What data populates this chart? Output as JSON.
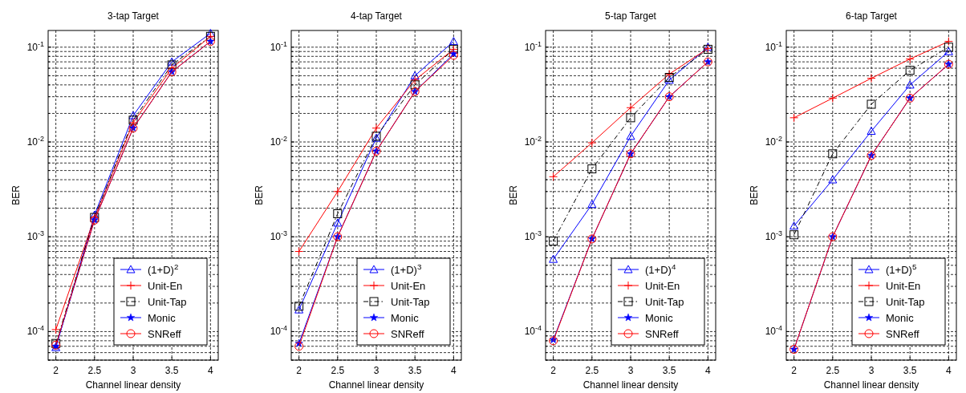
{
  "chart_data": [
    {
      "type": "line",
      "title": "3-tap Target",
      "xlabel": "Channel linear density",
      "ylabel": "BER",
      "log": "y",
      "grid": true,
      "legend": "bottom right",
      "x": [
        2,
        2.5,
        3,
        3.5,
        4
      ],
      "xlim": [
        1.9,
        4.1
      ],
      "xticks": [
        2,
        2.5,
        3,
        3.5,
        4
      ],
      "ylim": [
        5e-05,
        0.15
      ],
      "yticks": [
        {
          "value": 5e-05,
          "label": null
        },
        {
          "value": 6e-05,
          "label": null
        },
        {
          "value": 7e-05,
          "label": null
        },
        {
          "value": 8e-05,
          "label": null
        },
        {
          "value": 9e-05,
          "label": null
        },
        {
          "value": 0.0001,
          "label": "10$^{-4}$"
        },
        {
          "value": 0.0002,
          "label": null
        },
        {
          "value": 0.0003,
          "label": null
        },
        {
          "value": 0.0004,
          "label": null
        },
        {
          "value": 0.0005,
          "label": null
        },
        {
          "value": 0.0006,
          "label": null
        },
        {
          "value": 0.0007,
          "label": null
        },
        {
          "value": 0.0008,
          "label": null
        },
        {
          "value": 0.0009,
          "label": null
        },
        {
          "value": 0.001,
          "label": "10$^{-3}$"
        },
        {
          "value": 0.002,
          "label": null
        },
        {
          "value": 0.003,
          "label": null
        },
        {
          "value": 0.004,
          "label": null
        },
        {
          "value": 0.005,
          "label": null
        },
        {
          "value": 0.006,
          "label": null
        },
        {
          "value": 0.007,
          "label": null
        },
        {
          "value": 0.008,
          "label": null
        },
        {
          "value": 0.009,
          "label": null
        },
        {
          "value": 0.01,
          "label": "10$^{-2}$"
        },
        {
          "value": 0.02,
          "label": null
        },
        {
          "value": 0.03,
          "label": null
        },
        {
          "value": 0.04,
          "label": null
        },
        {
          "value": 0.05,
          "label": null
        },
        {
          "value": 0.06,
          "label": null
        },
        {
          "value": 0.07,
          "label": null
        },
        {
          "value": 0.08,
          "label": null
        },
        {
          "value": 0.09,
          "label": null
        },
        {
          "value": 0.1,
          "label": "10$^{-1}$"
        }
      ],
      "series": [
        {
          "name": "(1+D)$^{2}$",
          "color": "#0000ff",
          "marker": "triangle",
          "line_style": "solid",
          "values": [
            6.8e-05,
            0.0017,
            0.019,
            0.07,
            0.14
          ]
        },
        {
          "name": "Unit-En",
          "color": "#ff0000",
          "marker": "cross",
          "line_style": "solid",
          "values": [
            0.000105,
            0.0016,
            0.016,
            0.06,
            0.13
          ]
        },
        {
          "name": "Unit-Tap",
          "color": "#000000",
          "marker": "square",
          "line_style": "dashed",
          "values": [
            7.5e-05,
            0.0016,
            0.017,
            0.065,
            0.13
          ]
        },
        {
          "name": "Monic",
          "color": "#0000ff",
          "marker": "star",
          "line_style": "solid",
          "values": [
            7e-05,
            0.0015,
            0.014,
            0.055,
            0.115
          ]
        },
        {
          "name": "SNReff",
          "color": "#ff0000",
          "marker": "circle",
          "line_style": "solid",
          "values": [
            7.2e-05,
            0.0015,
            0.014,
            0.055,
            0.115
          ]
        }
      ]
    },
    {
      "type": "line",
      "title": "4-tap Target",
      "xlabel": "Channel linear density",
      "ylabel": "BER",
      "log": "y",
      "grid": true,
      "legend": "bottom right",
      "x": [
        2,
        2.5,
        3,
        3.5,
        4
      ],
      "xlim": [
        1.9,
        4.1
      ],
      "xticks": [
        2,
        2.5,
        3,
        3.5,
        4
      ],
      "ylim": [
        5e-05,
        0.15
      ],
      "yticks": [
        {
          "value": 5e-05,
          "label": null
        },
        {
          "value": 6e-05,
          "label": null
        },
        {
          "value": 7e-05,
          "label": null
        },
        {
          "value": 8e-05,
          "label": null
        },
        {
          "value": 9e-05,
          "label": null
        },
        {
          "value": 0.0001,
          "label": "10$^{-4}$"
        },
        {
          "value": 0.0002,
          "label": null
        },
        {
          "value": 0.0003,
          "label": null
        },
        {
          "value": 0.0004,
          "label": null
        },
        {
          "value": 0.0005,
          "label": null
        },
        {
          "value": 0.0006,
          "label": null
        },
        {
          "value": 0.0007,
          "label": null
        },
        {
          "value": 0.0008,
          "label": null
        },
        {
          "value": 0.0009,
          "label": null
        },
        {
          "value": 0.001,
          "label": "10$^{-3}$"
        },
        {
          "value": 0.002,
          "label": null
        },
        {
          "value": 0.003,
          "label": null
        },
        {
          "value": 0.004,
          "label": null
        },
        {
          "value": 0.005,
          "label": null
        },
        {
          "value": 0.006,
          "label": null
        },
        {
          "value": 0.007,
          "label": null
        },
        {
          "value": 0.008,
          "label": null
        },
        {
          "value": 0.009,
          "label": null
        },
        {
          "value": 0.01,
          "label": "10$^{-2}$"
        },
        {
          "value": 0.02,
          "label": null
        },
        {
          "value": 0.03,
          "label": null
        },
        {
          "value": 0.04,
          "label": null
        },
        {
          "value": 0.05,
          "label": null
        },
        {
          "value": 0.06,
          "label": null
        },
        {
          "value": 0.07,
          "label": null
        },
        {
          "value": 0.08,
          "label": null
        },
        {
          "value": 0.09,
          "label": null
        },
        {
          "value": 0.1,
          "label": "10$^{-1}$"
        }
      ],
      "series": [
        {
          "name": "(1+D)$^{3}$",
          "color": "#0000ff",
          "marker": "triangle",
          "line_style": "solid",
          "values": [
            0.00017,
            0.0014,
            0.011,
            0.05,
            0.115
          ]
        },
        {
          "name": "Unit-En",
          "color": "#ff0000",
          "marker": "cross",
          "line_style": "solid",
          "values": [
            0.0007,
            0.003,
            0.014,
            0.045,
            0.095
          ]
        },
        {
          "name": "Unit-Tap",
          "color": "#000000",
          "marker": "square",
          "line_style": "dashed",
          "values": [
            0.000185,
            0.00175,
            0.0115,
            0.04,
            0.095
          ]
        },
        {
          "name": "Monic",
          "color": "#0000ff",
          "marker": "star",
          "line_style": "solid",
          "values": [
            7.5e-05,
            0.001,
            0.008,
            0.034,
            0.085
          ]
        },
        {
          "name": "SNReff",
          "color": "#ff0000",
          "marker": "circle",
          "line_style": "solid",
          "values": [
            7e-05,
            0.001,
            0.008,
            0.034,
            0.082
          ]
        }
      ]
    },
    {
      "type": "line",
      "title": "5-tap Target",
      "xlabel": "Channel linear density",
      "ylabel": "BER",
      "log": "y",
      "grid": true,
      "legend": "bottom right",
      "x": [
        2,
        2.5,
        3,
        3.5,
        4
      ],
      "xlim": [
        1.9,
        4.1
      ],
      "xticks": [
        2,
        2.5,
        3,
        3.5,
        4
      ],
      "ylim": [
        5e-05,
        0.15
      ],
      "yticks": [
        {
          "value": 5e-05,
          "label": null
        },
        {
          "value": 6e-05,
          "label": null
        },
        {
          "value": 7e-05,
          "label": null
        },
        {
          "value": 8e-05,
          "label": null
        },
        {
          "value": 9e-05,
          "label": null
        },
        {
          "value": 0.0001,
          "label": "10$^{-4}$"
        },
        {
          "value": 0.0002,
          "label": null
        },
        {
          "value": 0.0003,
          "label": null
        },
        {
          "value": 0.0004,
          "label": null
        },
        {
          "value": 0.0005,
          "label": null
        },
        {
          "value": 0.0006,
          "label": null
        },
        {
          "value": 0.0007,
          "label": null
        },
        {
          "value": 0.0008,
          "label": null
        },
        {
          "value": 0.0009,
          "label": null
        },
        {
          "value": 0.001,
          "label": "10$^{-3}$"
        },
        {
          "value": 0.002,
          "label": null
        },
        {
          "value": 0.003,
          "label": null
        },
        {
          "value": 0.004,
          "label": null
        },
        {
          "value": 0.005,
          "label": null
        },
        {
          "value": 0.006,
          "label": null
        },
        {
          "value": 0.007,
          "label": null
        },
        {
          "value": 0.008,
          "label": null
        },
        {
          "value": 0.009,
          "label": null
        },
        {
          "value": 0.01,
          "label": "10$^{-2}$"
        },
        {
          "value": 0.02,
          "label": null
        },
        {
          "value": 0.03,
          "label": null
        },
        {
          "value": 0.04,
          "label": null
        },
        {
          "value": 0.05,
          "label": null
        },
        {
          "value": 0.06,
          "label": null
        },
        {
          "value": 0.07,
          "label": null
        },
        {
          "value": 0.08,
          "label": null
        },
        {
          "value": 0.09,
          "label": null
        },
        {
          "value": 0.1,
          "label": "10$^{-1}$"
        }
      ],
      "series": [
        {
          "name": "(1+D)$^{4}$",
          "color": "#0000ff",
          "marker": "triangle",
          "line_style": "solid",
          "values": [
            0.00058,
            0.0022,
            0.0115,
            0.045,
            0.1
          ]
        },
        {
          "name": "Unit-En",
          "color": "#ff0000",
          "marker": "cross",
          "line_style": "solid",
          "values": [
            0.0043,
            0.0098,
            0.023,
            0.052,
            0.097
          ]
        },
        {
          "name": "Unit-Tap",
          "color": "#000000",
          "marker": "square",
          "line_style": "dashed",
          "values": [
            0.0009,
            0.0052,
            0.018,
            0.048,
            0.095
          ]
        },
        {
          "name": "Monic",
          "color": "#0000ff",
          "marker": "star",
          "line_style": "solid",
          "values": [
            8.2e-05,
            0.00095,
            0.0075,
            0.03,
            0.07
          ]
        },
        {
          "name": "SNReff",
          "color": "#ff0000",
          "marker": "circle",
          "line_style": "solid",
          "values": [
            8e-05,
            0.00095,
            0.0075,
            0.03,
            0.07
          ]
        }
      ]
    },
    {
      "type": "line",
      "title": "6-tap Target",
      "xlabel": "Channel linear density",
      "ylabel": "BER",
      "log": "y",
      "grid": true,
      "legend": "bottom right",
      "x": [
        2,
        2.5,
        3,
        3.5,
        4
      ],
      "xlim": [
        1.9,
        4.1
      ],
      "xticks": [
        2,
        2.5,
        3,
        3.5,
        4
      ],
      "ylim": [
        5e-05,
        0.15
      ],
      "yticks": [
        {
          "value": 5e-05,
          "label": null
        },
        {
          "value": 6e-05,
          "label": null
        },
        {
          "value": 7e-05,
          "label": null
        },
        {
          "value": 8e-05,
          "label": null
        },
        {
          "value": 9e-05,
          "label": null
        },
        {
          "value": 0.0001,
          "label": "10$^{-4}$"
        },
        {
          "value": 0.0002,
          "label": null
        },
        {
          "value": 0.0003,
          "label": null
        },
        {
          "value": 0.0004,
          "label": null
        },
        {
          "value": 0.0005,
          "label": null
        },
        {
          "value": 0.0006,
          "label": null
        },
        {
          "value": 0.0007,
          "label": null
        },
        {
          "value": 0.0008,
          "label": null
        },
        {
          "value": 0.0009,
          "label": null
        },
        {
          "value": 0.001,
          "label": "10$^{-3}$"
        },
        {
          "value": 0.002,
          "label": null
        },
        {
          "value": 0.003,
          "label": null
        },
        {
          "value": 0.004,
          "label": null
        },
        {
          "value": 0.005,
          "label": null
        },
        {
          "value": 0.006,
          "label": null
        },
        {
          "value": 0.007,
          "label": null
        },
        {
          "value": 0.008,
          "label": null
        },
        {
          "value": 0.009,
          "label": null
        },
        {
          "value": 0.01,
          "label": "10$^{-2}$"
        },
        {
          "value": 0.02,
          "label": null
        },
        {
          "value": 0.03,
          "label": null
        },
        {
          "value": 0.04,
          "label": null
        },
        {
          "value": 0.05,
          "label": null
        },
        {
          "value": 0.06,
          "label": null
        },
        {
          "value": 0.07,
          "label": null
        },
        {
          "value": 0.08,
          "label": null
        },
        {
          "value": 0.09,
          "label": null
        },
        {
          "value": 0.1,
          "label": "10$^{-1}$"
        }
      ],
      "series": [
        {
          "name": "(1+D)$^{5}$",
          "color": "#0000ff",
          "marker": "triangle",
          "line_style": "solid",
          "values": [
            0.0013,
            0.004,
            0.013,
            0.04,
            0.09
          ]
        },
        {
          "name": "Unit-En",
          "color": "#ff0000",
          "marker": "cross",
          "line_style": "solid",
          "values": [
            0.018,
            0.029,
            0.047,
            0.075,
            0.115
          ]
        },
        {
          "name": "Unit-Tap",
          "color": "#000000",
          "marker": "square",
          "line_style": "dashed",
          "values": [
            0.00105,
            0.0075,
            0.025,
            0.057,
            0.1
          ]
        },
        {
          "name": "Monic",
          "color": "#0000ff",
          "marker": "star",
          "line_style": "solid",
          "values": [
            6.5e-05,
            0.001,
            0.0072,
            0.029,
            0.066
          ]
        },
        {
          "name": "SNReff",
          "color": "#ff0000",
          "marker": "circle",
          "line_style": "solid",
          "values": [
            6.5e-05,
            0.001,
            0.0072,
            0.029,
            0.066
          ]
        }
      ]
    }
  ]
}
